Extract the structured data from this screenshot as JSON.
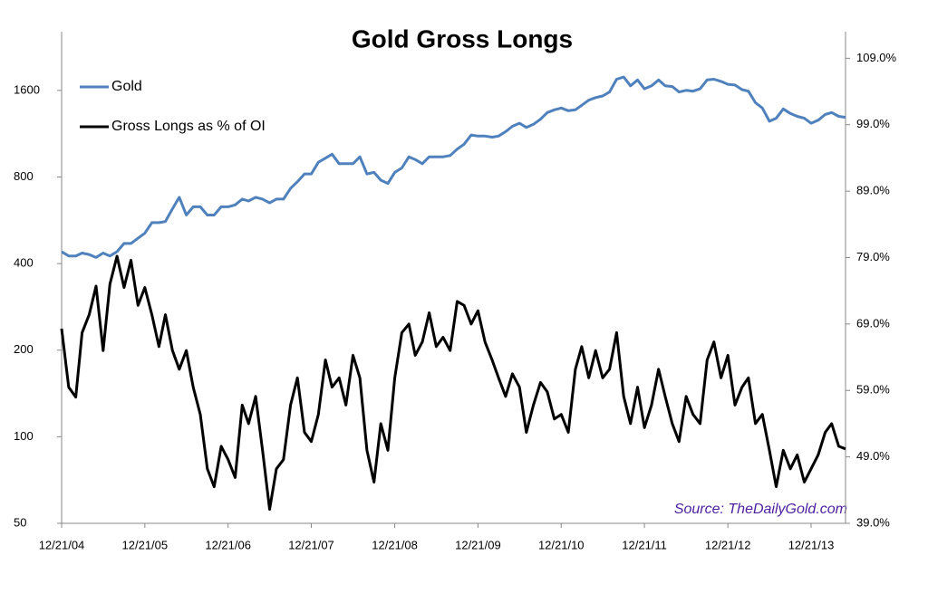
{
  "chart_data": {
    "type": "line",
    "title": "Gold Gross Longs",
    "annotation": "Source: TheDailyGold.com",
    "log_scale_y": true,
    "grid": false,
    "legend": "upper left",
    "x": [
      "2004-12-21",
      "2005-01-21",
      "2005-02-21",
      "2005-03-21",
      "2005-04-21",
      "2005-05-21",
      "2005-06-21",
      "2005-07-21",
      "2005-08-21",
      "2005-09-21",
      "2005-10-21",
      "2005-11-21",
      "2005-12-21",
      "2006-01-21",
      "2006-02-21",
      "2006-03-21",
      "2006-04-21",
      "2006-05-21",
      "2006-06-21",
      "2006-07-21",
      "2006-08-21",
      "2006-09-21",
      "2006-10-21",
      "2006-11-21",
      "2006-12-21",
      "2007-01-21",
      "2007-02-21",
      "2007-03-21",
      "2007-04-21",
      "2007-05-21",
      "2007-06-21",
      "2007-07-21",
      "2007-08-21",
      "2007-09-21",
      "2007-10-21",
      "2007-11-21",
      "2007-12-21",
      "2008-01-21",
      "2008-02-21",
      "2008-03-21",
      "2008-04-21",
      "2008-05-21",
      "2008-06-21",
      "2008-07-21",
      "2008-08-21",
      "2008-09-21",
      "2008-10-21",
      "2008-11-21",
      "2008-12-21",
      "2009-01-21",
      "2009-02-21",
      "2009-03-21",
      "2009-04-21",
      "2009-05-21",
      "2009-06-21",
      "2009-07-21",
      "2009-08-21",
      "2009-09-21",
      "2009-10-21",
      "2009-11-21",
      "2009-12-21",
      "2010-01-21",
      "2010-02-21",
      "2010-03-21",
      "2010-04-21",
      "2010-05-21",
      "2010-06-21",
      "2010-07-21",
      "2010-08-21",
      "2010-09-21",
      "2010-10-21",
      "2010-11-21",
      "2010-12-21",
      "2011-01-21",
      "2011-02-21",
      "2011-03-21",
      "2011-04-21",
      "2011-05-21",
      "2011-06-21",
      "2011-07-21",
      "2011-08-21",
      "2011-09-21",
      "2011-10-21",
      "2011-11-21",
      "2011-12-21",
      "2012-01-21",
      "2012-02-21",
      "2012-03-21",
      "2012-04-21",
      "2012-05-21",
      "2012-06-21",
      "2012-07-21",
      "2012-08-21",
      "2012-09-21",
      "2012-10-21",
      "2012-11-21",
      "2012-12-21",
      "2013-01-21",
      "2013-02-21",
      "2013-03-21",
      "2013-04-21",
      "2013-05-21",
      "2013-06-21",
      "2013-07-21",
      "2013-08-21",
      "2013-09-21",
      "2013-10-21",
      "2013-11-21",
      "2013-12-21",
      "2014-01-21",
      "2014-02-21",
      "2014-03-21",
      "2014-04-21",
      "2014-05-21"
    ],
    "xlim": [
      "2004-12-21",
      "2014-05-21"
    ],
    "xticks": [
      {
        "value": "2004-12-21",
        "label": "12/21/04"
      },
      {
        "value": "2005-12-21",
        "label": "12/21/05"
      },
      {
        "value": "2006-12-21",
        "label": "12/21/06"
      },
      {
        "value": "2007-12-21",
        "label": "12/21/07"
      },
      {
        "value": "2008-12-21",
        "label": "12/21/08"
      },
      {
        "value": "2009-12-21",
        "label": "12/21/09"
      },
      {
        "value": "2010-12-21",
        "label": "12/21/10"
      },
      {
        "value": "2011-12-21",
        "label": "12/21/11"
      },
      {
        "value": "2012-12-21",
        "label": "12/21/12"
      },
      {
        "value": "2013-12-21",
        "label": "12/21/13"
      }
    ],
    "ylim": [
      50,
      2560
    ],
    "yticks": [
      50,
      100,
      200,
      400,
      800,
      1600
    ],
    "y2lim": [
      39,
      113
    ],
    "y2ticks": [
      {
        "value": 39,
        "label": "39.0%"
      },
      {
        "value": 49,
        "label": "49.0%"
      },
      {
        "value": 59,
        "label": "59.0%"
      },
      {
        "value": 69,
        "label": "69.0%"
      },
      {
        "value": 79,
        "label": "79.0%"
      },
      {
        "value": 89,
        "label": "89.0%"
      },
      {
        "value": 99,
        "label": "99.0%"
      },
      {
        "value": 109,
        "label": "109.0%"
      }
    ],
    "series": [
      {
        "name": "Gold",
        "color": "#4f81bd",
        "values": [
          440,
          425,
          425,
          435,
          430,
          420,
          435,
          425,
          440,
          470,
          470,
          490,
          510,
          555,
          555,
          560,
          620,
          680,
          590,
          630,
          630,
          590,
          590,
          630,
          630,
          640,
          670,
          660,
          680,
          670,
          650,
          670,
          670,
          730,
          770,
          820,
          820,
          900,
          930,
          960,
          890,
          890,
          890,
          940,
          820,
          830,
          780,
          760,
          830,
          860,
          940,
          920,
          890,
          940,
          940,
          940,
          950,
          1000,
          1040,
          1120,
          1110,
          1110,
          1100,
          1110,
          1150,
          1200,
          1230,
          1190,
          1220,
          1270,
          1340,
          1370,
          1390,
          1360,
          1370,
          1420,
          1480,
          1510,
          1530,
          1580,
          1750,
          1780,
          1660,
          1740,
          1620,
          1660,
          1740,
          1660,
          1650,
          1580,
          1600,
          1590,
          1620,
          1740,
          1750,
          1720,
          1680,
          1670,
          1610,
          1590,
          1450,
          1390,
          1250,
          1280,
          1380,
          1330,
          1300,
          1280,
          1230,
          1260,
          1320,
          1340,
          1300,
          1290
        ]
      },
      {
        "name": "Gross Longs as % of OI",
        "color": "#000000",
        "axis": "y2",
        "values": [
          68.3,
          59.5,
          58,
          67.7,
          70.4,
          74.7,
          65,
          75,
          79.2,
          74.5,
          78.6,
          71.8,
          74.5,
          70.4,
          65.6,
          70.4,
          65,
          62.2,
          65,
          59.5,
          55.4,
          47.2,
          44.5,
          50.6,
          48.6,
          45.9,
          56.8,
          54,
          58.1,
          50,
          41.1,
          47.2,
          48.6,
          56.8,
          60.9,
          52.7,
          51.3,
          55.4,
          63.6,
          59.5,
          60.9,
          56.8,
          64.3,
          60.9,
          50,
          45.2,
          54,
          50,
          60.9,
          67.7,
          69,
          64.3,
          66.3,
          70.7,
          65.6,
          67,
          65,
          72.4,
          71.8,
          69,
          71,
          66.3,
          63.6,
          60.9,
          58.1,
          61.5,
          59.5,
          52.7,
          56.8,
          60.2,
          58.8,
          54.7,
          55.4,
          52.7,
          62.2,
          65.6,
          60.9,
          65,
          60.9,
          62.2,
          67.7,
          58.1,
          54,
          59.5,
          53.4,
          56.8,
          62.2,
          58.1,
          54,
          51.3,
          58.1,
          55.4,
          54,
          63.6,
          66.3,
          60.9,
          64.3,
          56.8,
          59.5,
          60.9,
          54,
          55.4,
          50,
          44.5,
          50,
          47.2,
          49.3,
          45.2,
          47.2,
          49.3,
          52.7,
          54,
          50.6,
          50.2
        ]
      }
    ]
  }
}
